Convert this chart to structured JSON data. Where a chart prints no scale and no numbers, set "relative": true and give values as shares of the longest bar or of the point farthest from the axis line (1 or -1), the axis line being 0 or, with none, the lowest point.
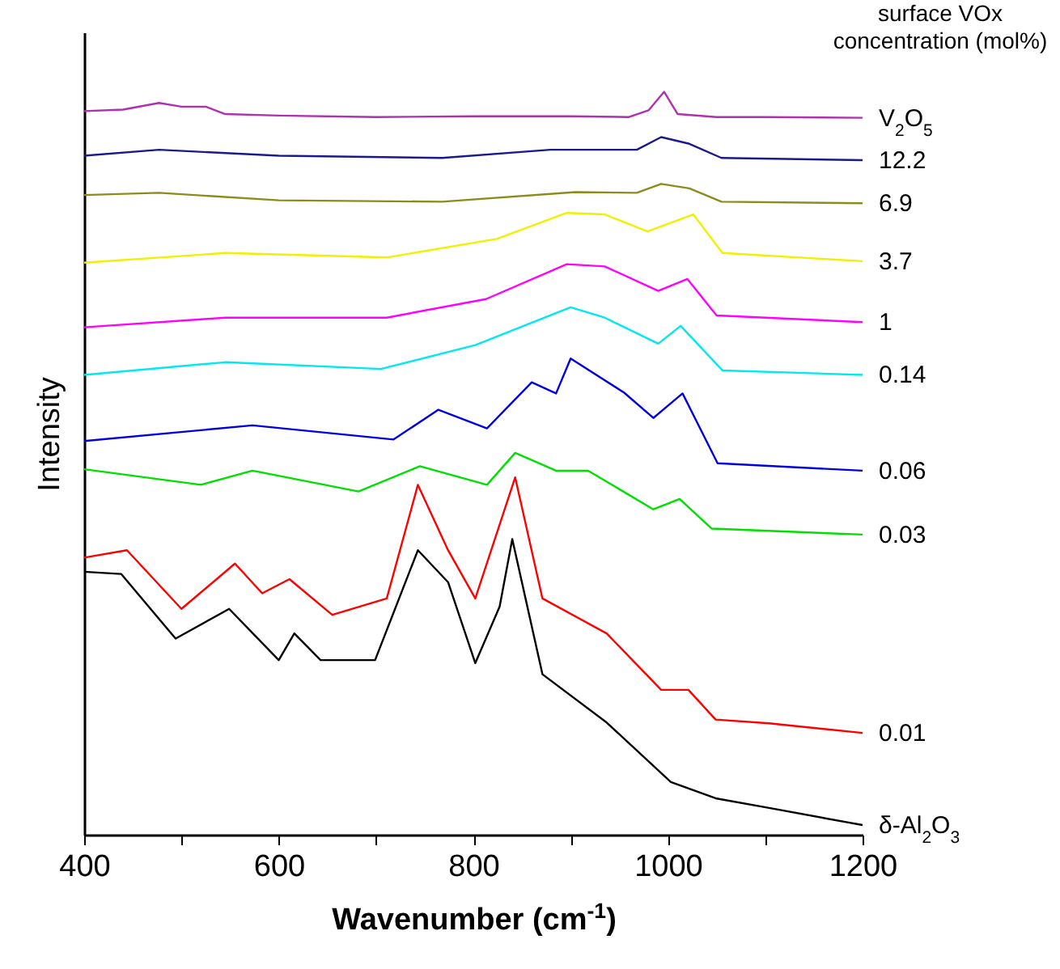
{
  "chart_data": {
    "type": "line",
    "relative": true,
    "xlabel": "Wavenumber (cm$^{-1}$)",
    "ylabel": "Intensity",
    "legend_title": "surface VOx\nconcentration (mol%)",
    "xlim": [
      400,
      1200
    ],
    "xticks": [
      400,
      {
        "value": 500,
        "label": null
      },
      600,
      {
        "value": 700,
        "label": null
      },
      800,
      {
        "value": 900,
        "label": null
      },
      1000,
      {
        "value": 1100,
        "label": null
      },
      1200
    ],
    "series": [
      {
        "name": "V$_{2}$O$_{5}$",
        "color": "#b030b0",
        "x": [
          400,
          440,
          477,
          500,
          525,
          545,
          600,
          700,
          800,
          900,
          960,
          980,
          996,
          1010,
          1050,
          1100,
          1200
        ],
        "values": [
          0.974,
          0.976,
          0.985,
          0.98,
          0.98,
          0.97,
          0.968,
          0.966,
          0.967,
          0.967,
          0.966,
          0.975,
          1.0,
          0.97,
          0.966,
          0.966,
          0.965
        ]
      },
      {
        "name": "12.2",
        "color": "#1a1a8c",
        "x": [
          400,
          477,
          600,
          768,
          879,
          968,
          993,
          1022,
          1055,
          1200
        ],
        "values": [
          0.914,
          0.922,
          0.914,
          0.911,
          0.922,
          0.922,
          0.939,
          0.93,
          0.911,
          0.908
        ]
      },
      {
        "name": "6.9",
        "color": "#8c8c1a",
        "x": [
          400,
          477,
          600,
          768,
          905,
          968,
          993,
          1022,
          1055,
          1200
        ],
        "values": [
          0.861,
          0.864,
          0.854,
          0.852,
          0.865,
          0.864,
          0.876,
          0.87,
          0.852,
          0.85
        ]
      },
      {
        "name": "3.7",
        "color": "#f0f000",
        "x": [
          400,
          545,
          711,
          824,
          896,
          935,
          979,
          1026,
          1056,
          1200
        ],
        "values": [
          0.77,
          0.783,
          0.777,
          0.802,
          0.837,
          0.835,
          0.812,
          0.835,
          0.783,
          0.772
        ]
      },
      {
        "name": "1",
        "color": "#ff00ff",
        "x": [
          400,
          545,
          711,
          813,
          896,
          935,
          990,
          1020,
          1050,
          1200
        ],
        "values": [
          0.683,
          0.696,
          0.696,
          0.721,
          0.768,
          0.765,
          0.732,
          0.748,
          0.699,
          0.69
        ]
      },
      {
        "name": "0.14",
        "color": "#00e8f0",
        "x": [
          400,
          545,
          705,
          802,
          900,
          935,
          990,
          1013,
          1056,
          1200
        ],
        "values": [
          0.619,
          0.636,
          0.627,
          0.659,
          0.71,
          0.696,
          0.661,
          0.685,
          0.625,
          0.619
        ]
      },
      {
        "name": "0.06",
        "color": "#0000e0",
        "x": [
          400,
          573,
          718,
          764,
          814,
          860,
          885,
          900,
          955,
          985,
          1015,
          1051,
          1200
        ],
        "values": [
          0.53,
          0.551,
          0.532,
          0.572,
          0.547,
          0.609,
          0.594,
          0.641,
          0.595,
          0.561,
          0.594,
          0.5,
          0.49
        ]
      },
      {
        "name": "0.03",
        "color": "#00e000",
        "x": [
          400,
          520,
          573,
          682,
          745,
          814,
          843,
          885,
          918,
          985,
          1012,
          1045,
          1200
        ],
        "values": [
          0.492,
          0.471,
          0.49,
          0.462,
          0.496,
          0.471,
          0.514,
          0.49,
          0.49,
          0.438,
          0.452,
          0.412,
          0.404
        ]
      },
      {
        "name": "0.01",
        "color": "#ff0000",
        "x": [
          400,
          444,
          500,
          555,
          583,
          611,
          655,
          711,
          743,
          774,
          802,
          843,
          871,
          937,
          993,
          1021,
          1049,
          1104,
          1200
        ],
        "values": [
          0.373,
          0.383,
          0.304,
          0.365,
          0.325,
          0.344,
          0.296,
          0.318,
          0.471,
          0.383,
          0.318,
          0.481,
          0.318,
          0.271,
          0.195,
          0.195,
          0.155,
          0.15,
          0.137
        ]
      },
      {
        "name": "δ-Al$_{2}$O$_{3}$",
        "color": "#000000",
        "x": [
          400,
          438,
          494,
          549,
          600,
          616,
          643,
          699,
          743,
          774,
          802,
          827,
          840,
          871,
          937,
          1003,
          1049,
          1104,
          1200
        ],
        "values": [
          0.354,
          0.351,
          0.264,
          0.304,
          0.235,
          0.271,
          0.235,
          0.235,
          0.383,
          0.34,
          0.231,
          0.307,
          0.398,
          0.216,
          0.151,
          0.071,
          0.049,
          0.036,
          0.013
        ]
      }
    ]
  }
}
